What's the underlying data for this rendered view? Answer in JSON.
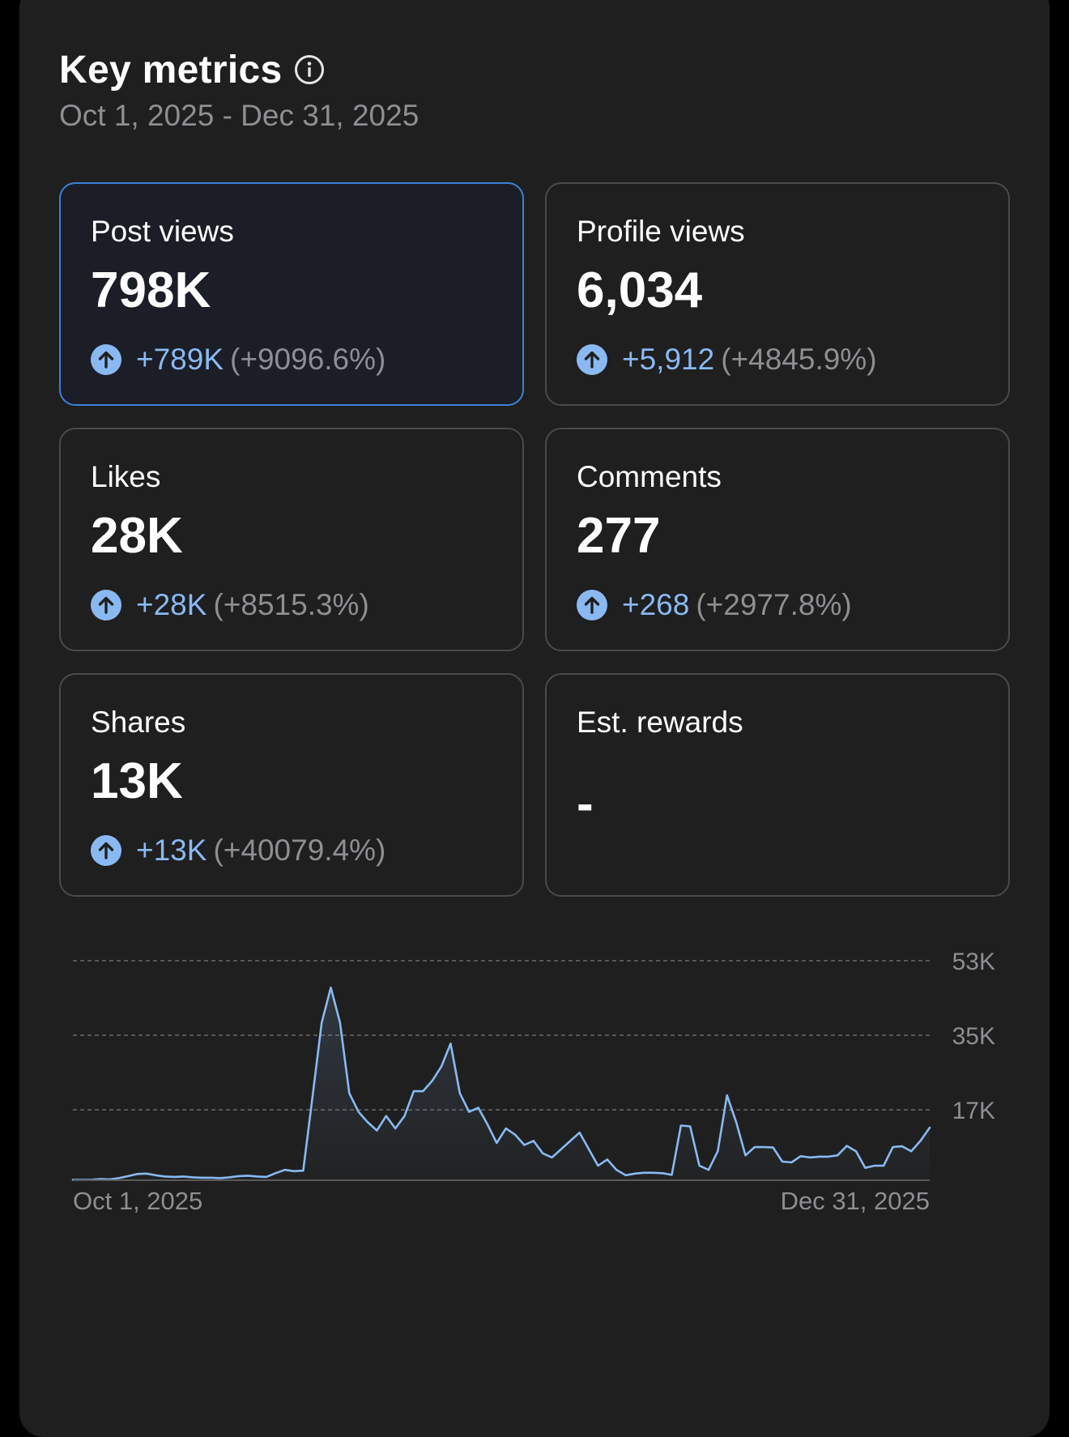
{
  "header": {
    "title": "Key metrics",
    "date_range": "Oct 1, 2025 - Dec 31, 2025"
  },
  "metrics": [
    {
      "label": "Post views",
      "value": "798K",
      "delta": "+789K",
      "pct": "(+9096.6%)",
      "active": true
    },
    {
      "label": "Profile views",
      "value": "6,034",
      "delta": "+5,912",
      "pct": "(+4845.9%)",
      "active": false
    },
    {
      "label": "Likes",
      "value": "28K",
      "delta": "+28K",
      "pct": "(+8515.3%)",
      "active": false
    },
    {
      "label": "Comments",
      "value": "277",
      "delta": "+268",
      "pct": "(+2977.8%)",
      "active": false
    },
    {
      "label": "Shares",
      "value": "13K",
      "delta": "+13K",
      "pct": "(+40079.4%)",
      "active": false
    },
    {
      "label": "Est. rewards",
      "value": "-",
      "delta": "",
      "pct": "",
      "active": false
    }
  ],
  "icons": {
    "info": "info-circle-icon",
    "up": "arrow-up-circle-icon"
  },
  "colors": {
    "accent": "#8ab9f2",
    "active_border": "#3b82d6",
    "line": "#8ab9f2"
  },
  "chart_data": {
    "type": "area",
    "title": "",
    "xlabel": "",
    "ylabel": "",
    "x_tick_labels": [
      "Oct 1, 2025",
      "Dec 31, 2025"
    ],
    "y_tick_labels": [
      "17K",
      "35K",
      "53K"
    ],
    "y_ticks": [
      17000,
      35000,
      53000
    ],
    "ylim": [
      0,
      53000
    ],
    "x_start": "Oct 1, 2025",
    "x_end": "Dec 31, 2025",
    "grid": true,
    "series": [
      {
        "values": [
          100,
          100,
          100,
          300,
          200,
          500,
          1000,
          1500,
          1600,
          1200,
          900,
          800,
          900,
          700,
          600,
          600,
          500,
          700,
          1000,
          1100,
          900,
          800,
          1700,
          2500,
          2200,
          2300,
          20000,
          38000,
          46500,
          38000,
          21000,
          16500,
          14000,
          12000,
          15500,
          12500,
          15500,
          21500,
          21500,
          24000,
          27500,
          33000,
          21000,
          16500,
          17500,
          13500,
          9000,
          12500,
          11000,
          8500,
          9500,
          6500,
          5500,
          7500,
          9500,
          11500,
          7500,
          3500,
          5000,
          2500,
          1200,
          1600,
          1800,
          1800,
          1700,
          1300,
          13200,
          13000,
          3500,
          2500,
          7000,
          20500,
          14000,
          6000,
          8000,
          8000,
          7900,
          4500,
          4300,
          5800,
          5500,
          5700,
          5700,
          6000,
          8300,
          7000,
          3000,
          3500,
          3500,
          8000,
          8200,
          7000,
          9500,
          12700
        ]
      }
    ]
  }
}
